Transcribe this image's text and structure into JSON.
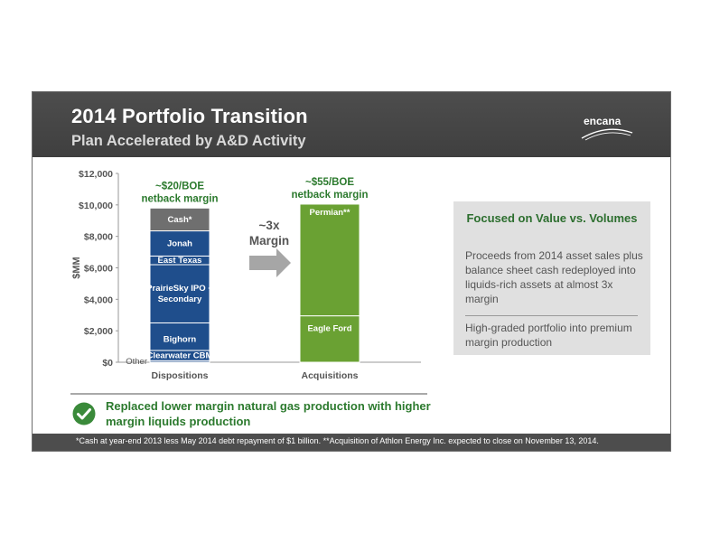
{
  "header": {
    "title": "2014 Portfolio Transition",
    "subtitle": "Plan Accelerated by A&D Activity",
    "logo_text": "encana"
  },
  "colors": {
    "header_bg": "#434343",
    "dispositions_bar": "#1f4e8c",
    "cash_segment": "#6f6f6f",
    "acquisitions_bar": "#6aa133",
    "highlight_green": "#2c7a2e",
    "arrow": "#a6a6a6"
  },
  "chart_data": {
    "type": "bar",
    "stacked": true,
    "categories": [
      "Dispositions",
      "Acquisitions"
    ],
    "ylabel": "$MM",
    "ylim": [
      0,
      12000
    ],
    "yticks": [
      "$0",
      "$2,000",
      "$4,000",
      "$6,000",
      "$8,000",
      "$10,000",
      "$12,000"
    ],
    "ytick_values": [
      0,
      2000,
      4000,
      6000,
      8000,
      10000,
      12000
    ],
    "grid": false,
    "dispositions_segments": [
      {
        "label": "Other",
        "value": 100,
        "label_outside": true
      },
      {
        "label": "Clearwater CBM",
        "value": 650
      },
      {
        "label": "Bighorn",
        "value": 1750
      },
      {
        "label": "PrairieSky IPO + Secondary",
        "value": 3700
      },
      {
        "label": "East Texas",
        "value": 550
      },
      {
        "label": "Jonah",
        "value": 1600
      },
      {
        "label": "Cash*",
        "value": 1450
      }
    ],
    "acquisitions_segments": [
      {
        "label": "Eagle Ford",
        "value": 2950
      },
      {
        "label": "Permian**",
        "value": 7100
      }
    ],
    "annotations": {
      "dispositions_top": "~$20/BOE netback margin",
      "acquisitions_top": "~$55/BOE netback margin",
      "arrow_label": "~3x Margin"
    }
  },
  "side_box": {
    "title": "Focused on Value vs. Volumes",
    "point1": "Proceeds from 2014 asset sales plus balance sheet cash redeployed into liquids-rich assets at almost 3x margin",
    "point2": "High-graded portfolio into premium margin production"
  },
  "callout": {
    "text": "Replaced lower margin natural gas production with higher margin liquids production"
  },
  "footnote": "*Cash at year-end 2013 less May 2014 debt repayment of $1 billion. **Acquisition of Athlon Energy Inc. expected to close on November 13, 2014."
}
